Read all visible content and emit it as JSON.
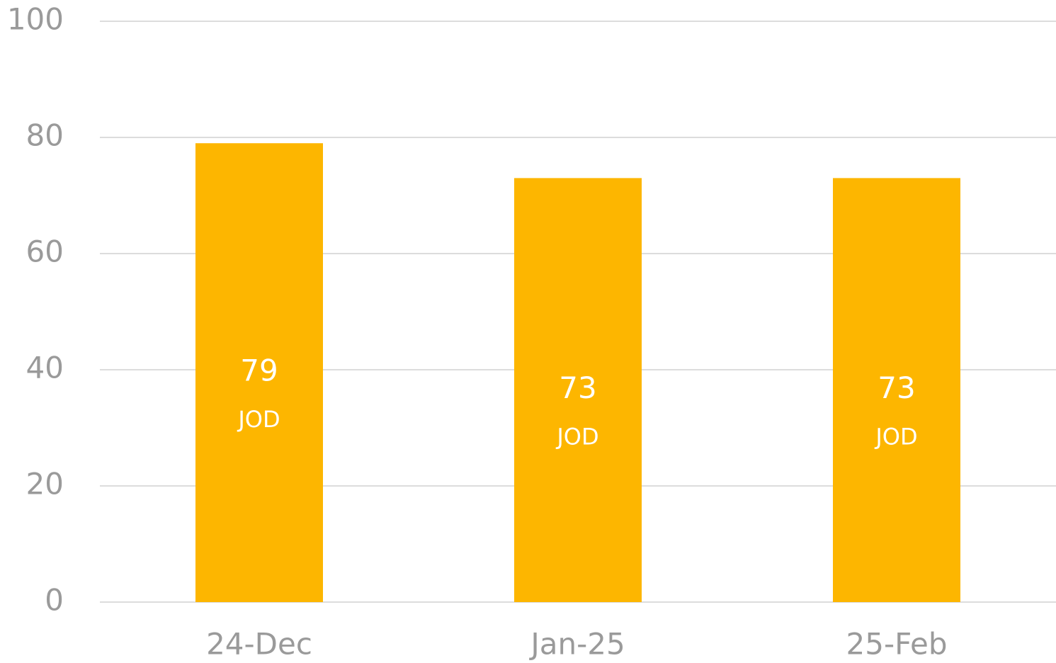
{
  "chart_data": {
    "type": "bar",
    "categories": [
      "24-Dec",
      "Jan-25",
      "25-Feb"
    ],
    "values": [
      79,
      73,
      73
    ],
    "value_unit": "JOD",
    "color": "#fdb600",
    "ylim": [
      0,
      100
    ],
    "yticks": [
      0,
      20,
      40,
      60,
      80,
      100
    ],
    "grid": true
  }
}
